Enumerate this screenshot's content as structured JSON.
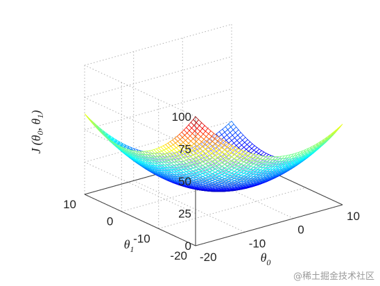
{
  "chart_data": {
    "type": "surface3d",
    "function": "J(theta0,theta1) = (theta0^2 + theta1^2) / 8",
    "x": {
      "label_main": "θ",
      "label_sub": "0",
      "ticks": [
        -20,
        -10,
        0,
        10
      ],
      "range": [
        -20,
        10
      ]
    },
    "y": {
      "label_main": "θ",
      "label_sub": "1",
      "ticks": [
        -20,
        -10,
        0,
        10
      ],
      "range": [
        -20,
        10
      ]
    },
    "z": {
      "label_main": "J",
      "label_args": "(θ",
      "label_sub0": "0",
      "label_sep": ", θ",
      "label_sub1": "1",
      "label_close": ")",
      "ticks": [
        0,
        25,
        50,
        75,
        100
      ],
      "range": [
        0,
        100
      ]
    },
    "grid": true,
    "colormap": "jet"
  },
  "watermark": "@稀土掘金技术社区"
}
